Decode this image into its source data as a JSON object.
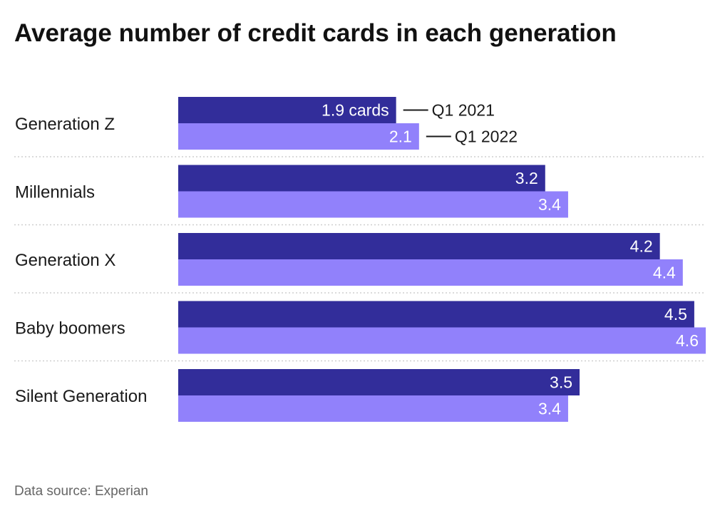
{
  "chart_data": {
    "type": "bar",
    "orientation": "horizontal",
    "title": "Average number of credit cards in each generation",
    "categories": [
      "Generation Z",
      "Millennials",
      "Generation X",
      "Baby boomers",
      "Silent Generation"
    ],
    "series": [
      {
        "name": "Q1 2021",
        "values": [
          1.9,
          3.2,
          4.2,
          4.5,
          3.5
        ],
        "color": "#322d9a"
      },
      {
        "name": "Q1 2022",
        "values": [
          2.1,
          3.4,
          4.4,
          4.6,
          3.4
        ],
        "color": "#9181fb"
      }
    ],
    "first_label_suffix": " cards",
    "xlim": [
      0,
      4.6
    ],
    "legend": "inline-top",
    "source": "Data source: Experian"
  }
}
